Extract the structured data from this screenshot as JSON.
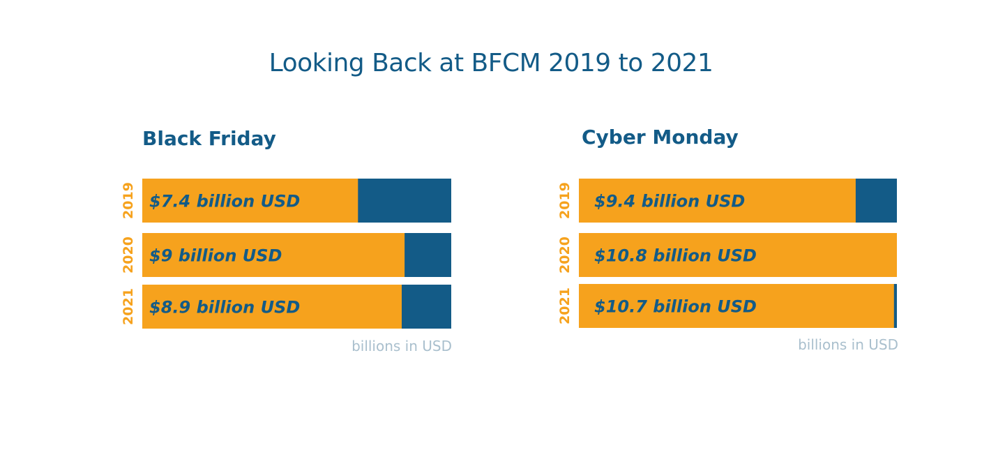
{
  "title": "Looking Back at BFCM 2019 to 2021",
  "colors": {
    "title": "#135b87",
    "bar_fill": "#f6a21d",
    "bar_track": "#135b87",
    "bar_text": "#135b87",
    "year_label": "#f6a21d",
    "unit_label": "#a9bfcd"
  },
  "chart_data": [
    {
      "type": "bar",
      "orientation": "horizontal",
      "title": "Black Friday",
      "categories": [
        "2019",
        "2020",
        "2021"
      ],
      "values": [
        7.4,
        9,
        8.9
      ],
      "data_labels": [
        "$7.4 billion USD",
        "$9 billion USD",
        "$8.9 billion USD"
      ],
      "xlim": [
        0,
        10.6
      ],
      "unit_label": "billions in USD",
      "grid": false
    },
    {
      "type": "bar",
      "orientation": "horizontal",
      "title": "Cyber Monday",
      "categories": [
        "2019",
        "2020",
        "2021"
      ],
      "values": [
        9.4,
        10.8,
        10.7
      ],
      "data_labels": [
        "$9.4 billion USD",
        "$10.8 billion USD",
        "$10.7 billion USD"
      ],
      "xlim": [
        0,
        10.8
      ],
      "unit_label": "billions in USD",
      "grid": false
    }
  ]
}
